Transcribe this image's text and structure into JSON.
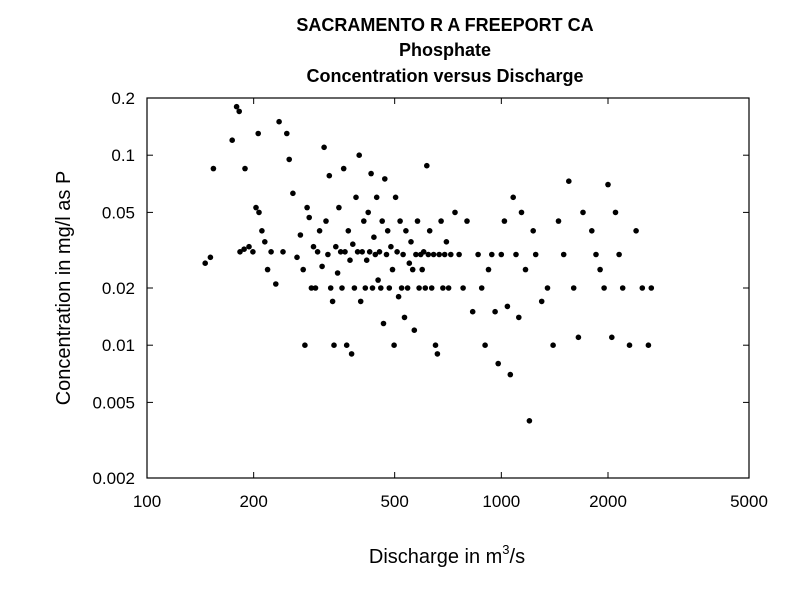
{
  "chart_data": {
    "type": "scatter",
    "title_lines": [
      "SACRAMENTO R A FREEPORT CA",
      "Phosphate",
      "Concentration versus Discharge"
    ],
    "xlabel_parts": {
      "pre": "Discharge in m",
      "sup": "3",
      "post": "/s"
    },
    "ylabel": "Concentration in mg/l as P",
    "x_scale": "log",
    "y_scale": "log",
    "xlim": [
      100,
      5000
    ],
    "ylim": [
      0.002,
      0.2
    ],
    "x_ticks": [
      {
        "value": 100,
        "label": "100"
      },
      {
        "value": 200,
        "label": "200"
      },
      {
        "value": 500,
        "label": "500"
      },
      {
        "value": 1000,
        "label": "1000"
      },
      {
        "value": 2000,
        "label": "2000"
      },
      {
        "value": 5000,
        "label": "5000"
      }
    ],
    "y_ticks": [
      {
        "value": 0.002,
        "label": "0.002"
      },
      {
        "value": 0.005,
        "label": "0.005"
      },
      {
        "value": 0.01,
        "label": "0.01"
      },
      {
        "value": 0.02,
        "label": "0.02"
      },
      {
        "value": 0.05,
        "label": "0.05"
      },
      {
        "value": 0.1,
        "label": "0.1"
      },
      {
        "value": 0.2,
        "label": "0.2"
      }
    ],
    "grid": false,
    "marker_color": "#000000",
    "points": [
      [
        146,
        0.027
      ],
      [
        151,
        0.029
      ],
      [
        154,
        0.085
      ],
      [
        174,
        0.12
      ],
      [
        179,
        0.18
      ],
      [
        182,
        0.17
      ],
      [
        183,
        0.031
      ],
      [
        188,
        0.032
      ],
      [
        189,
        0.085
      ],
      [
        194,
        0.033
      ],
      [
        199,
        0.031
      ],
      [
        203,
        0.053
      ],
      [
        206,
        0.13
      ],
      [
        207,
        0.05
      ],
      [
        211,
        0.04
      ],
      [
        215,
        0.035
      ],
      [
        219,
        0.025
      ],
      [
        224,
        0.031
      ],
      [
        231,
        0.021
      ],
      [
        236,
        0.15
      ],
      [
        242,
        0.031
      ],
      [
        248,
        0.13
      ],
      [
        252,
        0.095
      ],
      [
        258,
        0.063
      ],
      [
        265,
        0.029
      ],
      [
        271,
        0.038
      ],
      [
        276,
        0.025
      ],
      [
        279,
        0.01
      ],
      [
        283,
        0.053
      ],
      [
        287,
        0.047
      ],
      [
        291,
        0.02
      ],
      [
        295,
        0.033
      ],
      [
        299,
        0.02
      ],
      [
        303,
        0.031
      ],
      [
        307,
        0.04
      ],
      [
        312,
        0.026
      ],
      [
        316,
        0.11
      ],
      [
        320,
        0.045
      ],
      [
        324,
        0.03
      ],
      [
        327,
        0.078
      ],
      [
        330,
        0.02
      ],
      [
        334,
        0.017
      ],
      [
        337,
        0.01
      ],
      [
        341,
        0.033
      ],
      [
        345,
        0.024
      ],
      [
        348,
        0.053
      ],
      [
        352,
        0.031
      ],
      [
        355,
        0.02
      ],
      [
        359,
        0.085
      ],
      [
        362,
        0.031
      ],
      [
        366,
        0.01
      ],
      [
        370,
        0.04
      ],
      [
        374,
        0.028
      ],
      [
        378,
        0.009
      ],
      [
        381,
        0.034
      ],
      [
        385,
        0.02
      ],
      [
        389,
        0.06
      ],
      [
        393,
        0.031
      ],
      [
        397,
        0.1
      ],
      [
        401,
        0.017
      ],
      [
        405,
        0.031
      ],
      [
        409,
        0.045
      ],
      [
        413,
        0.02
      ],
      [
        417,
        0.028
      ],
      [
        421,
        0.05
      ],
      [
        425,
        0.031
      ],
      [
        429,
        0.08
      ],
      [
        433,
        0.02
      ],
      [
        437,
        0.037
      ],
      [
        441,
        0.03
      ],
      [
        445,
        0.06
      ],
      [
        449,
        0.022
      ],
      [
        453,
        0.031
      ],
      [
        457,
        0.02
      ],
      [
        461,
        0.045
      ],
      [
        465,
        0.013
      ],
      [
        469,
        0.075
      ],
      [
        474,
        0.03
      ],
      [
        478,
        0.04
      ],
      [
        483,
        0.02
      ],
      [
        488,
        0.033
      ],
      [
        493,
        0.025
      ],
      [
        498,
        0.01
      ],
      [
        503,
        0.06
      ],
      [
        508,
        0.031
      ],
      [
        513,
        0.018
      ],
      [
        518,
        0.045
      ],
      [
        523,
        0.02
      ],
      [
        528,
        0.03
      ],
      [
        533,
        0.014
      ],
      [
        538,
        0.04
      ],
      [
        544,
        0.02
      ],
      [
        550,
        0.027
      ],
      [
        556,
        0.035
      ],
      [
        562,
        0.025
      ],
      [
        568,
        0.012
      ],
      [
        574,
        0.03
      ],
      [
        580,
        0.045
      ],
      [
        586,
        0.02
      ],
      [
        592,
        0.03
      ],
      [
        598,
        0.025
      ],
      [
        604,
        0.031
      ],
      [
        610,
        0.02
      ],
      [
        616,
        0.088
      ],
      [
        622,
        0.03
      ],
      [
        628,
        0.04
      ],
      [
        636,
        0.02
      ],
      [
        644,
        0.03
      ],
      [
        652,
        0.01
      ],
      [
        660,
        0.009
      ],
      [
        668,
        0.03
      ],
      [
        676,
        0.045
      ],
      [
        684,
        0.02
      ],
      [
        692,
        0.03
      ],
      [
        700,
        0.035
      ],
      [
        710,
        0.02
      ],
      [
        720,
        0.03
      ],
      [
        740,
        0.05
      ],
      [
        760,
        0.03
      ],
      [
        780,
        0.02
      ],
      [
        800,
        0.045
      ],
      [
        830,
        0.015
      ],
      [
        860,
        0.03
      ],
      [
        880,
        0.02
      ],
      [
        900,
        0.01
      ],
      [
        920,
        0.025
      ],
      [
        940,
        0.03
      ],
      [
        960,
        0.015
      ],
      [
        980,
        0.008
      ],
      [
        1000,
        0.03
      ],
      [
        1020,
        0.045
      ],
      [
        1040,
        0.016
      ],
      [
        1060,
        0.007
      ],
      [
        1080,
        0.06
      ],
      [
        1100,
        0.03
      ],
      [
        1120,
        0.014
      ],
      [
        1140,
        0.05
      ],
      [
        1170,
        0.025
      ],
      [
        1200,
        0.004
      ],
      [
        1230,
        0.04
      ],
      [
        1250,
        0.03
      ],
      [
        1300,
        0.017
      ],
      [
        1350,
        0.02
      ],
      [
        1400,
        0.01
      ],
      [
        1450,
        0.045
      ],
      [
        1500,
        0.03
      ],
      [
        1550,
        0.073
      ],
      [
        1600,
        0.02
      ],
      [
        1650,
        0.011
      ],
      [
        1700,
        0.05
      ],
      [
        1800,
        0.04
      ],
      [
        1850,
        0.03
      ],
      [
        1900,
        0.025
      ],
      [
        1950,
        0.02
      ],
      [
        2000,
        0.07
      ],
      [
        2050,
        0.011
      ],
      [
        2100,
        0.05
      ],
      [
        2150,
        0.03
      ],
      [
        2200,
        0.02
      ],
      [
        2300,
        0.01
      ],
      [
        2400,
        0.04
      ],
      [
        2500,
        0.02
      ],
      [
        2600,
        0.01
      ],
      [
        2650,
        0.02
      ]
    ]
  }
}
